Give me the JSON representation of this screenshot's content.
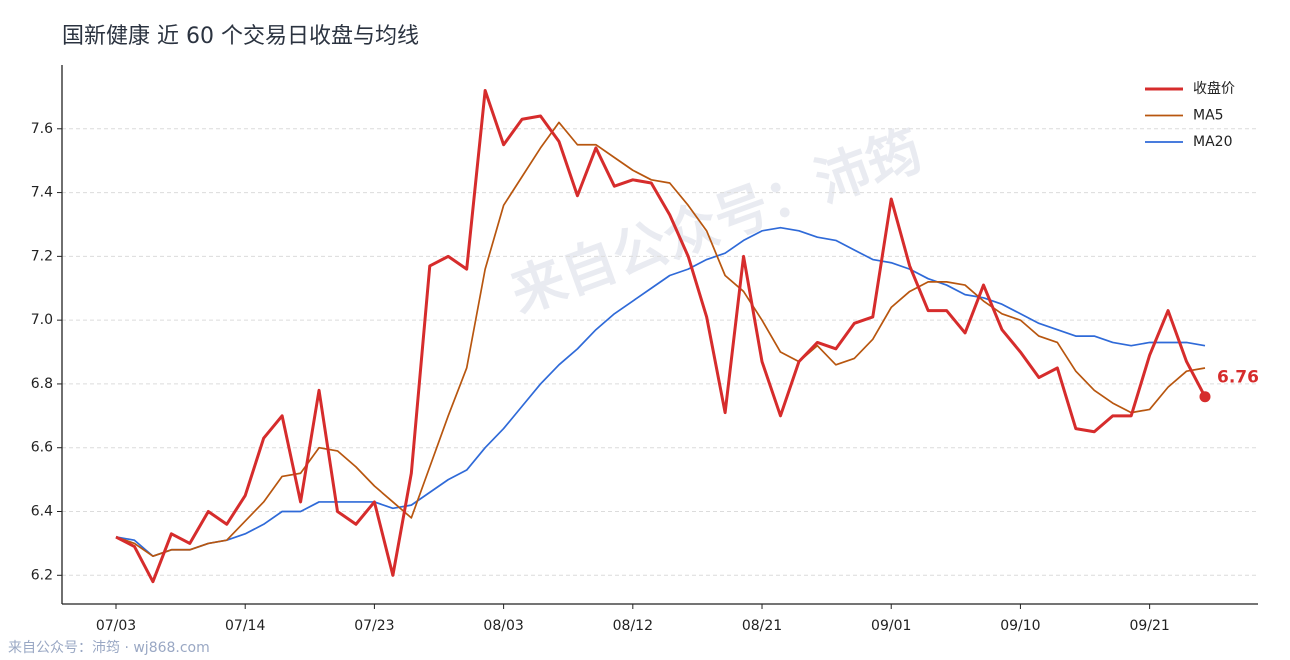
{
  "chart_data": {
    "type": "line",
    "title": "国新健康 近 60 个交易日收盘与均线",
    "watermark": "来自公众号：沛筠",
    "footer": "来自公众号：沛筠 · wj868.com",
    "categories": [
      "07/03",
      null,
      null,
      null,
      null,
      null,
      null,
      "07/14",
      null,
      null,
      null,
      null,
      null,
      null,
      "07/23",
      null,
      null,
      null,
      null,
      null,
      null,
      "08/03",
      null,
      null,
      null,
      null,
      null,
      null,
      "08/12",
      null,
      null,
      null,
      null,
      null,
      null,
      "08/21",
      null,
      null,
      null,
      null,
      null,
      null,
      "09/01",
      null,
      null,
      null,
      null,
      null,
      null,
      "09/10",
      null,
      null,
      null,
      null,
      null,
      null,
      "09/21",
      null,
      null,
      null
    ],
    "series": [
      {
        "name": "收盘价",
        "color": "#d62c2c",
        "values": [
          6.32,
          6.29,
          6.18,
          6.33,
          6.3,
          6.4,
          6.36,
          6.45,
          6.63,
          6.7,
          6.43,
          6.78,
          6.4,
          6.36,
          6.43,
          6.2,
          6.52,
          7.17,
          7.2,
          7.16,
          7.72,
          7.55,
          7.63,
          7.64,
          7.56,
          7.39,
          7.54,
          7.42,
          7.44,
          7.43,
          7.33,
          7.2,
          7.01,
          6.71,
          7.2,
          6.87,
          6.7,
          6.87,
          6.93,
          6.91,
          6.99,
          7.01,
          7.38,
          7.17,
          7.03,
          7.03,
          6.96,
          7.11,
          6.97,
          6.9,
          6.82,
          6.85,
          6.66,
          6.65,
          6.7,
          6.7,
          6.89,
          7.03,
          6.87,
          6.76
        ]
      },
      {
        "name": "MA5",
        "color": "#b8560f",
        "values": [
          6.32,
          6.3,
          6.26,
          6.28,
          6.28,
          6.3,
          6.31,
          6.37,
          6.43,
          6.51,
          6.52,
          6.6,
          6.59,
          6.54,
          6.48,
          6.43,
          6.38,
          6.54,
          6.7,
          6.85,
          7.16,
          7.36,
          7.45,
          7.54,
          7.62,
          7.55,
          7.55,
          7.51,
          7.47,
          7.44,
          7.43,
          7.36,
          7.28,
          7.14,
          7.09,
          7.0,
          6.9,
          6.87,
          6.92,
          6.86,
          6.88,
          6.94,
          7.04,
          7.09,
          7.12,
          7.12,
          7.11,
          7.06,
          7.02,
          7.0,
          6.95,
          6.93,
          6.84,
          6.78,
          6.74,
          6.71,
          6.72,
          6.79,
          6.84,
          6.85
        ]
      },
      {
        "name": "MA20",
        "color": "#2f6ad8",
        "values": [
          6.32,
          6.31,
          6.26,
          6.28,
          6.28,
          6.3,
          6.31,
          6.33,
          6.36,
          6.4,
          6.4,
          6.43,
          6.43,
          6.43,
          6.43,
          6.41,
          6.42,
          6.46,
          6.5,
          6.53,
          6.6,
          6.66,
          6.73,
          6.8,
          6.86,
          6.91,
          6.97,
          7.02,
          7.06,
          7.1,
          7.14,
          7.16,
          7.19,
          7.21,
          7.25,
          7.28,
          7.29,
          7.28,
          7.26,
          7.25,
          7.22,
          7.19,
          7.18,
          7.16,
          7.13,
          7.11,
          7.08,
          7.07,
          7.05,
          7.02,
          6.99,
          6.97,
          6.95,
          6.95,
          6.93,
          6.92,
          6.93,
          6.93,
          6.93,
          6.92
        ]
      }
    ],
    "ylim": [
      6.11,
      7.8
    ],
    "yticks": [
      6.2,
      6.4,
      6.6,
      6.8,
      {
        "value": 7,
        "label": "7.0"
      },
      7.2,
      7.4,
      7.6
    ],
    "grid": true,
    "legend": "upper right"
  }
}
